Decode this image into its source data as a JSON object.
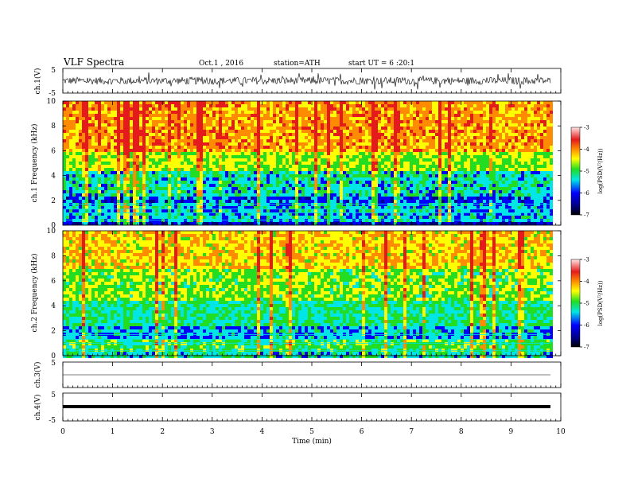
{
  "header": {
    "title": "VLF Spectra",
    "date": "Oct.1 , 2016",
    "station": "station=ATH",
    "start": "start UT = 6 :20:1"
  },
  "colors": {
    "red": "#e41a1c",
    "orange": "#ff8c00",
    "yellow": "#ffff00",
    "green": "#22dd22",
    "cyan": "#00e5e5",
    "blue": "#0000ff",
    "navy": "#000080",
    "pink": "#ffc0cb"
  },
  "chart_data": [
    {
      "type": "line",
      "name": "ch1-waveform",
      "ylabel": "ch.1(V)",
      "ylim": [
        -5,
        5
      ],
      "yticks": [
        "5",
        "-5"
      ],
      "xlim": [
        0,
        10
      ],
      "x_extent_data": [
        0,
        9.8
      ],
      "amplitude_v": 1.5
    },
    {
      "type": "heatmap",
      "name": "ch1-spectrogram",
      "ylabel": "ch.1 Frequency (kHz)",
      "ylim": [
        0,
        10
      ],
      "yticks": [
        "0",
        "2",
        "4",
        "6",
        "8",
        "10"
      ],
      "xlim": [
        0,
        10
      ],
      "x_extent_data": [
        0,
        9.8
      ],
      "band_khz": [
        {
          "f": [
            6.0,
            10.0
          ],
          "log_psd": -4.0
        },
        {
          "f": [
            4.5,
            6.0
          ],
          "log_psd": -4.8
        },
        {
          "f": [
            2.5,
            4.5
          ],
          "log_psd": -5.6
        },
        {
          "f": [
            1.8,
            2.5
          ],
          "log_psd": -6.2
        },
        {
          "f": [
            0.5,
            1.8
          ],
          "log_psd": -5.8
        },
        {
          "f": [
            0.0,
            0.5
          ],
          "log_psd": -6.6
        }
      ]
    },
    {
      "type": "heatmap",
      "name": "ch2-spectrogram",
      "ylabel": "ch.2 Frequency (kHz)",
      "ylim": [
        0,
        10
      ],
      "yticks": [
        "0",
        "2",
        "4",
        "6",
        "8",
        "10"
      ],
      "xlim": [
        0,
        10
      ],
      "x_extent_data": [
        0,
        9.8
      ],
      "band_khz": [
        {
          "f": [
            7.0,
            10.0
          ],
          "log_psd": -4.3
        },
        {
          "f": [
            4.5,
            7.0
          ],
          "log_psd": -4.9
        },
        {
          "f": [
            2.5,
            4.5
          ],
          "log_psd": -5.4
        },
        {
          "f": [
            1.5,
            2.5
          ],
          "log_psd": -5.9
        },
        {
          "f": [
            0.5,
            1.5
          ],
          "log_psd": -5.2
        },
        {
          "f": [
            0.0,
            0.5
          ],
          "log_psd": -5.6
        }
      ]
    },
    {
      "type": "line",
      "name": "ch3-waveform",
      "ylabel": "ch.3(V)",
      "ylim": [
        -5,
        5
      ],
      "yticks": [
        "5"
      ],
      "xlim": [
        0,
        10
      ],
      "x_extent_data": [
        0,
        9.8
      ],
      "constant_v": 0
    },
    {
      "type": "line",
      "name": "ch4-waveform",
      "ylabel": "ch.4(V)",
      "ylim": [
        -5,
        5
      ],
      "yticks": [
        "5",
        "-5"
      ],
      "xlim": [
        0,
        10
      ],
      "x_extent_data": [
        0,
        9.8
      ],
      "constant_v": 0
    }
  ],
  "colorbar": {
    "label": "log(PSD(V²/Hz))",
    "range": [
      -7,
      -3
    ],
    "ticks": [
      "-3",
      "-4",
      "-5",
      "-6",
      "-7"
    ]
  },
  "xaxis": {
    "label": "Time (min)",
    "ticks": [
      "0",
      "1",
      "2",
      "3",
      "4",
      "5",
      "6",
      "7",
      "8",
      "9",
      "10"
    ]
  }
}
